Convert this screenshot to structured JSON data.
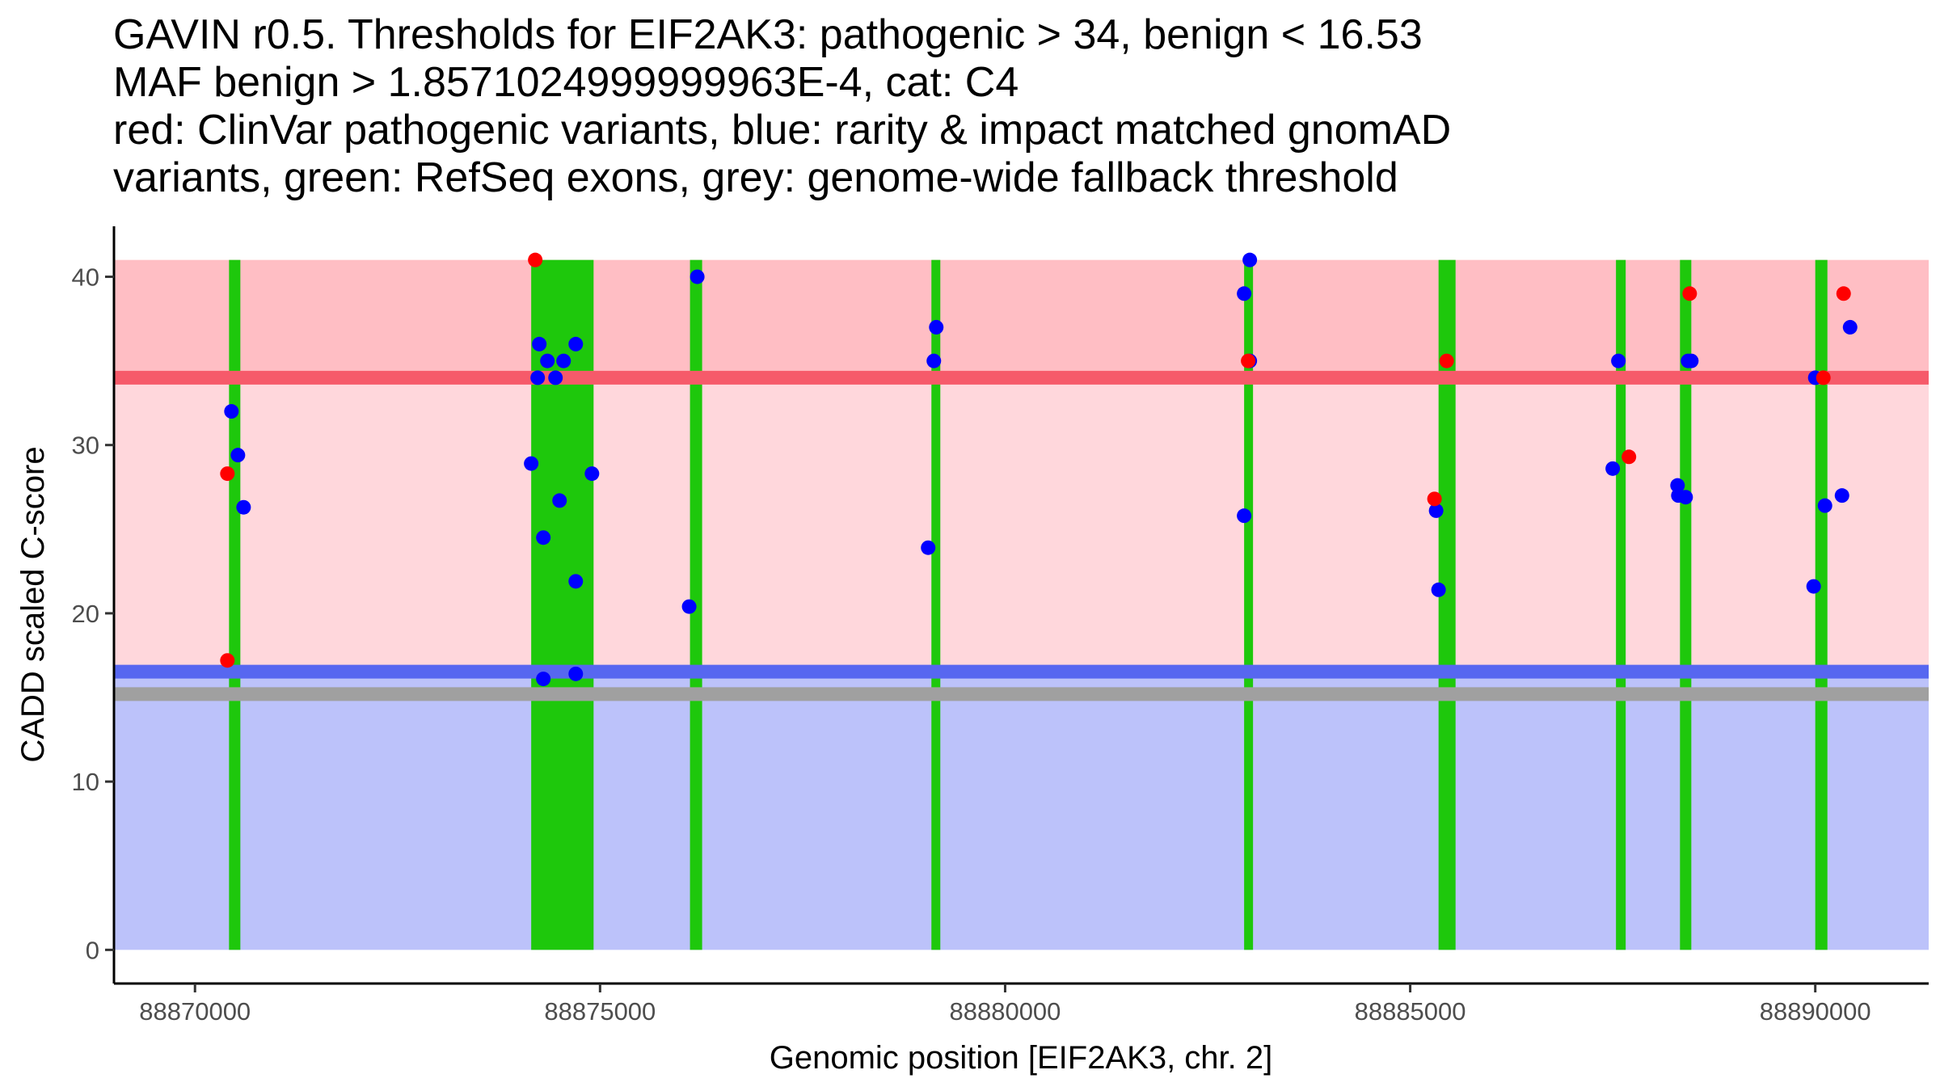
{
  "chart_data": {
    "type": "scatter",
    "title_lines": [
      "GAVIN r0.5. Thresholds for EIF2AK3: pathogenic > 34, benign < 16.53",
      "MAF benign > 1.8571024999999963E-4, cat: C4",
      "red: ClinVar pathogenic variants, blue: rarity & impact matched gnomAD",
      "variants, green: RefSeq exons, grey: genome-wide fallback threshold"
    ],
    "xlabel": "Genomic position [EIF2AK3, chr. 2]",
    "ylabel": "CADD scaled C-score",
    "xlim": [
      88869000,
      88891400
    ],
    "ylim": [
      -2,
      43
    ],
    "x_ticks": [
      88870000,
      88875000,
      88880000,
      88885000,
      88890000
    ],
    "x_tick_labels": [
      "88870000",
      "88875000",
      "88880000",
      "88885000",
      "88890000"
    ],
    "y_ticks": [
      0,
      10,
      20,
      30,
      40
    ],
    "y_tick_labels": [
      "0",
      "10",
      "20",
      "30",
      "40"
    ],
    "x_data_min": 88869000,
    "x_data_max": 88891400,
    "regions": [
      {
        "name": "benign-region",
        "y0": 0,
        "y1": 16.53,
        "color": "#bcc2fa"
      },
      {
        "name": "vus-region",
        "y0": 16.53,
        "y1": 34,
        "color": "#ffd7dc"
      },
      {
        "name": "pathogenic-region",
        "y0": 34,
        "y1": 41,
        "color": "#ffbec4"
      }
    ],
    "exons": [
      [
        88870420,
        88870560
      ],
      [
        88874150,
        88874920
      ],
      [
        88876110,
        88876260
      ],
      [
        88879090,
        88879200
      ],
      [
        88882950,
        88883060
      ],
      [
        88885350,
        88885560
      ],
      [
        88887540,
        88887660
      ],
      [
        88888330,
        88888470
      ],
      [
        88890000,
        88890150
      ]
    ],
    "exon_color": "#1ec80c",
    "threshold_lines": [
      {
        "name": "pathogenic-threshold",
        "y": 34,
        "color": "#f65a6a"
      },
      {
        "name": "benign-threshold",
        "y": 16.53,
        "color": "#5767f0"
      },
      {
        "name": "fallback-threshold",
        "y": 15.2,
        "color": "#a0a0a0"
      }
    ],
    "series": [
      {
        "name": "ClinVar pathogenic",
        "color": "#ff0000",
        "points": [
          [
            88870400,
            28.3
          ],
          [
            88870400,
            17.2
          ],
          [
            88874200,
            41.0
          ],
          [
            88883000,
            35.0
          ],
          [
            88885300,
            26.8
          ],
          [
            88885450,
            35.0
          ],
          [
            88887700,
            29.3
          ],
          [
            88888450,
            39.0
          ],
          [
            88890100,
            34.0
          ],
          [
            88890350,
            39.0
          ]
        ]
      },
      {
        "name": "gnomAD matched",
        "color": "#0000ff",
        "points": [
          [
            88870450,
            32.0
          ],
          [
            88870530,
            29.4
          ],
          [
            88870600,
            26.3
          ],
          [
            88874150,
            28.9
          ],
          [
            88874230,
            34.0
          ],
          [
            88874250,
            36.0
          ],
          [
            88874300,
            24.5
          ],
          [
            88874300,
            16.1
          ],
          [
            88874350,
            35.0
          ],
          [
            88874450,
            34.0
          ],
          [
            88874500,
            26.7
          ],
          [
            88874550,
            35.0
          ],
          [
            88874700,
            36.0
          ],
          [
            88874700,
            21.9
          ],
          [
            88874700,
            16.4
          ],
          [
            88874900,
            28.3
          ],
          [
            88876100,
            20.4
          ],
          [
            88876200,
            40.0
          ],
          [
            88879050,
            23.9
          ],
          [
            88879120,
            35.0
          ],
          [
            88879150,
            37.0
          ],
          [
            88882950,
            39.0
          ],
          [
            88882950,
            25.8
          ],
          [
            88883020,
            41.0
          ],
          [
            88883020,
            35.0
          ],
          [
            88885320,
            26.1
          ],
          [
            88885350,
            21.4
          ],
          [
            88887500,
            28.6
          ],
          [
            88887570,
            35.0
          ],
          [
            88888300,
            27.6
          ],
          [
            88888310,
            27.0
          ],
          [
            88888400,
            26.9
          ],
          [
            88888430,
            35.0
          ],
          [
            88888470,
            35.0
          ],
          [
            88889980,
            21.6
          ],
          [
            88890000,
            34.0
          ],
          [
            88890120,
            26.4
          ],
          [
            88890330,
            27.0
          ],
          [
            88890430,
            37.0
          ]
        ]
      }
    ]
  }
}
